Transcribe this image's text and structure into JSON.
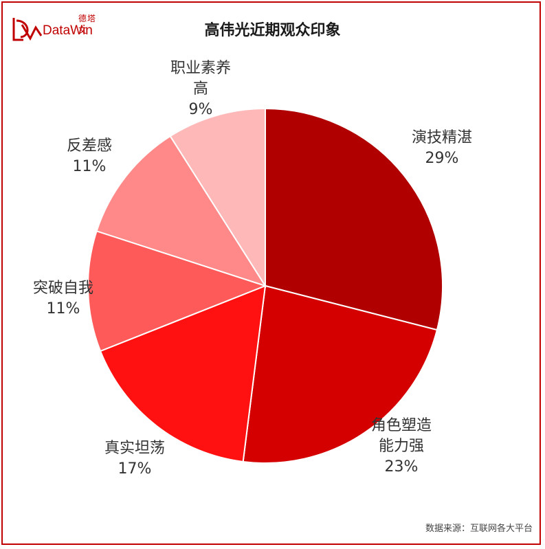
{
  "logo": {
    "cn": "德塔文",
    "en": "DataWin"
  },
  "colors": {
    "frame": "#c00000"
  },
  "source": "数据来源：互联网各大平台",
  "chart_data": {
    "type": "pie",
    "title": "高伟光近期观众印象",
    "slices": [
      {
        "label_lines": [
          "演技精湛"
        ],
        "value": 29,
        "value_label": "29%",
        "color": "#b00000"
      },
      {
        "label_lines": [
          "角色塑造",
          "能力强"
        ],
        "value": 23,
        "value_label": "23%",
        "color": "#d40000"
      },
      {
        "label_lines": [
          "真实坦荡"
        ],
        "value": 17,
        "value_label": "17%",
        "color": "#ff1111"
      },
      {
        "label_lines": [
          "突破自我"
        ],
        "value": 11,
        "value_label": "11%",
        "color": "#ff5a5a"
      },
      {
        "label_lines": [
          "反差感"
        ],
        "value": 11,
        "value_label": "11%",
        "color": "#ff8888"
      },
      {
        "label_lines": [
          "职业素养",
          "高"
        ],
        "value": 9,
        "value_label": "9%",
        "color": "#ffb8b8"
      }
    ]
  }
}
